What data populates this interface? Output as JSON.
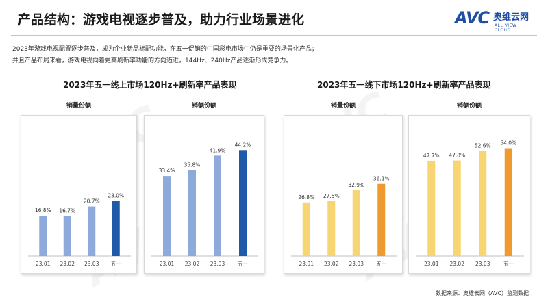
{
  "header": {
    "title": "产品结构：游戏电视逐步普及，助力行业场景进化"
  },
  "logo": {
    "mark": "AVC",
    "cn": "奥维云网",
    "en": "ALL VIEW CLOUD"
  },
  "intro": {
    "line1": "2023年游戏电视配置逐步普及，成为企业新品标配功能，在五一促销的中国彩电市场中仍是重要的场景化产品；",
    "line2": "并且产品布局来看，游戏电视向着更高刷新率功能的方向迈进，144Hz、240Hz产品逐渐形成竞争力。"
  },
  "sections": {
    "left_title": "2023年五一线上市场120Hz+刷新率产品表现",
    "right_title": "2023年五一线下市场120Hz+刷新率产品表现"
  },
  "watermark": "AVC",
  "colors": {
    "online_regular": "#8eaadb",
    "online_highlight": "#1f5aa8",
    "offline_regular": "#f7d572",
    "offline_highlight": "#ef9a2e"
  },
  "chart_data": [
    {
      "type": "bar",
      "title": "销量份额",
      "categories": [
        "23.01",
        "23.02",
        "23.03",
        "五一"
      ],
      "values": [
        16.8,
        16.7,
        20.7,
        23.0
      ],
      "labels": [
        "16.8%",
        "16.7%",
        "20.7%",
        "23.0%"
      ],
      "ylim": [
        0,
        50
      ],
      "highlight_index": 3,
      "palette": "online"
    },
    {
      "type": "bar",
      "title": "销额份额",
      "categories": [
        "23.01",
        "23.02",
        "23.03",
        "五一"
      ],
      "values": [
        33.4,
        35.8,
        41.9,
        44.2
      ],
      "labels": [
        "33.4%",
        "35.8%",
        "41.9%",
        "44.2%"
      ],
      "ylim": [
        0,
        50
      ],
      "highlight_index": 3,
      "palette": "online"
    },
    {
      "type": "bar",
      "title": "销量份额",
      "categories": [
        "23.01",
        "23.02",
        "23.03",
        "五一"
      ],
      "values": [
        26.8,
        27.5,
        32.9,
        36.1
      ],
      "labels": [
        "26.8%",
        "27.5%",
        "32.9%",
        "36.1%"
      ],
      "ylim": [
        0,
        60
      ],
      "highlight_index": 3,
      "palette": "offline"
    },
    {
      "type": "bar",
      "title": "销额份额",
      "categories": [
        "23.01",
        "23.02",
        "23.03",
        "五一"
      ],
      "values": [
        47.7,
        47.8,
        52.6,
        54.0
      ],
      "labels": [
        "47.7%",
        "47.8%",
        "52.6%",
        "54.0%"
      ],
      "ylim": [
        0,
        60
      ],
      "highlight_index": 3,
      "palette": "offline"
    }
  ],
  "footer": {
    "source": "数据来源：奥维云网（AVC）监测数据"
  }
}
